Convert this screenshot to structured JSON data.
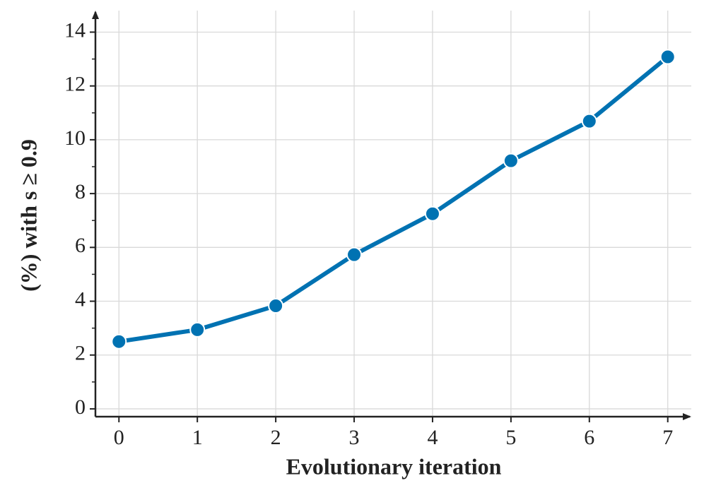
{
  "chart_data": {
    "type": "line",
    "x_label": "Evolutionary iteration",
    "y_label": "(%) with s ≥ 0.9",
    "x": [
      0,
      1,
      2,
      3,
      4,
      5,
      6,
      7
    ],
    "series": [
      {
        "color": "#0072b2",
        "values": [
          2.5,
          2.94,
          3.83,
          5.73,
          7.25,
          9.22,
          10.69,
          13.08
        ]
      }
    ],
    "xlim": [
      -0.3,
      7.3
    ],
    "ylim": [
      -0.29,
      14.8
    ],
    "xticks": [
      0,
      1,
      2,
      3,
      4,
      5,
      6,
      7
    ],
    "yticks": [
      0,
      2,
      4,
      6,
      8,
      10,
      12,
      14
    ],
    "yminorticks": [
      1,
      3,
      5,
      7,
      9,
      11,
      13
    ],
    "grid": true
  }
}
